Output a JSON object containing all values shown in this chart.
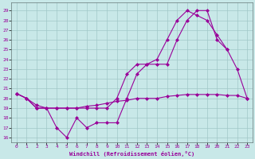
{
  "xlabel": "Windchill (Refroidissement éolien,°C)",
  "bg_color": "#c8e8e8",
  "line_color": "#990099",
  "grid_color": "#a0c8c8",
  "x_ticks": [
    0,
    1,
    2,
    3,
    4,
    5,
    6,
    7,
    8,
    9,
    10,
    11,
    12,
    13,
    14,
    15,
    16,
    17,
    18,
    19,
    20,
    21,
    22,
    23
  ],
  "y_ticks": [
    16,
    17,
    18,
    19,
    20,
    21,
    22,
    23,
    24,
    25,
    26,
    27,
    28,
    29
  ],
  "ylim": [
    15.5,
    29.8
  ],
  "xlim": [
    -0.5,
    23.5
  ],
  "line1_x": [
    0,
    1,
    2,
    3,
    4,
    5,
    6,
    7,
    8,
    9,
    10,
    11,
    12,
    13,
    14,
    15,
    16,
    17,
    18,
    19,
    20,
    21,
    22,
    23
  ],
  "line1_y": [
    20.5,
    20.0,
    19.0,
    19.0,
    17.0,
    16.0,
    18.0,
    17.0,
    17.5,
    17.5,
    17.5,
    20.0,
    22.5,
    23.5,
    23.5,
    23.5,
    26.0,
    28.0,
    29.0,
    29.0,
    26.0,
    25.0,
    23.0,
    20.0
  ],
  "line2_x": [
    0,
    1,
    2,
    3,
    4,
    5,
    6,
    7,
    8,
    9,
    10,
    11,
    12,
    13,
    14,
    15,
    16,
    17,
    18,
    19,
    20,
    21,
    22,
    23
  ],
  "line2_y": [
    20.5,
    20.0,
    19.3,
    19.0,
    19.0,
    19.0,
    19.0,
    19.2,
    19.3,
    19.5,
    19.7,
    19.8,
    20.0,
    20.0,
    20.0,
    20.2,
    20.3,
    20.4,
    20.4,
    20.4,
    20.4,
    20.3,
    20.3,
    20.0
  ],
  "line3_x": [
    0,
    1,
    2,
    3,
    4,
    5,
    6,
    7,
    8,
    9,
    10,
    11,
    12,
    13,
    14,
    15,
    16,
    17,
    18,
    19,
    20,
    21
  ],
  "line3_y": [
    20.5,
    20.0,
    19.0,
    19.0,
    19.0,
    19.0,
    19.0,
    19.0,
    19.0,
    19.0,
    20.0,
    22.5,
    23.5,
    23.5,
    24.0,
    26.0,
    28.0,
    29.0,
    28.5,
    28.0,
    26.5,
    25.0
  ]
}
